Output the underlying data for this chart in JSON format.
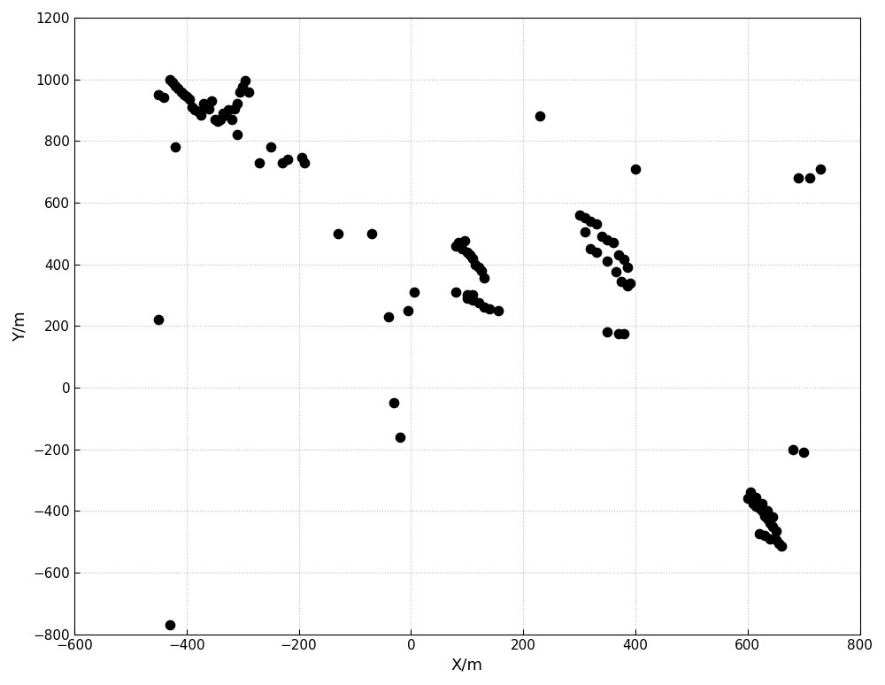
{
  "x": [
    -450,
    -440,
    -430,
    -425,
    -420,
    -415,
    -410,
    -405,
    -400,
    -395,
    -390,
    -385,
    -380,
    -375,
    -370,
    -365,
    -360,
    -355,
    -350,
    -345,
    -340,
    -335,
    -330,
    -325,
    -320,
    -315,
    -310,
    -305,
    -300,
    -295,
    -290,
    -230,
    -220,
    -190,
    -195,
    -310,
    -270,
    -420,
    -250,
    -130,
    -70,
    -450,
    -30,
    -20,
    5,
    -5,
    -40,
    80,
    90,
    95,
    100,
    105,
    110,
    115,
    120,
    125,
    130,
    85,
    100,
    110,
    120,
    130,
    140,
    155,
    80,
    100,
    110,
    230,
    300,
    310,
    320,
    330,
    340,
    350,
    360,
    370,
    380,
    385,
    390,
    310,
    320,
    330,
    350,
    365,
    375,
    350,
    370,
    380,
    400,
    385,
    600,
    610,
    615,
    620,
    625,
    630,
    635,
    640,
    645,
    650,
    605,
    615,
    625,
    635,
    645,
    620,
    630,
    640,
    650,
    655,
    660,
    680,
    700,
    730,
    -430,
    690,
    710
  ],
  "y": [
    950,
    940,
    1000,
    990,
    980,
    970,
    960,
    950,
    945,
    935,
    910,
    900,
    895,
    885,
    920,
    910,
    905,
    930,
    870,
    865,
    870,
    890,
    885,
    900,
    870,
    905,
    920,
    960,
    975,
    995,
    960,
    730,
    740,
    730,
    745,
    820,
    730,
    780,
    780,
    500,
    500,
    220,
    -50,
    -160,
    310,
    250,
    230,
    460,
    450,
    475,
    440,
    430,
    420,
    400,
    390,
    380,
    355,
    470,
    300,
    285,
    275,
    260,
    255,
    250,
    310,
    290,
    300,
    880,
    560,
    550,
    540,
    530,
    490,
    480,
    470,
    430,
    415,
    390,
    340,
    505,
    450,
    440,
    410,
    375,
    345,
    180,
    175,
    175,
    710,
    330,
    -360,
    -375,
    -385,
    -390,
    -400,
    -415,
    -425,
    -440,
    -450,
    -465,
    -340,
    -355,
    -375,
    -400,
    -420,
    -475,
    -480,
    -490,
    -495,
    -505,
    -515,
    -200,
    -210,
    710,
    -770,
    680,
    680
  ],
  "xlabel": "X/m",
  "ylabel": "Y/m",
  "xlim": [
    -600,
    800
  ],
  "ylim": [
    -800,
    1200
  ],
  "xticks": [
    -600,
    -400,
    -200,
    0,
    200,
    400,
    600,
    800
  ],
  "yticks": [
    -800,
    -600,
    -400,
    -200,
    0,
    200,
    400,
    600,
    800,
    1000,
    1200
  ],
  "dot_color": "black",
  "dot_size": 55,
  "background_color": "#ffffff",
  "grid_color": "#bbbbbb",
  "grid_style": ":"
}
